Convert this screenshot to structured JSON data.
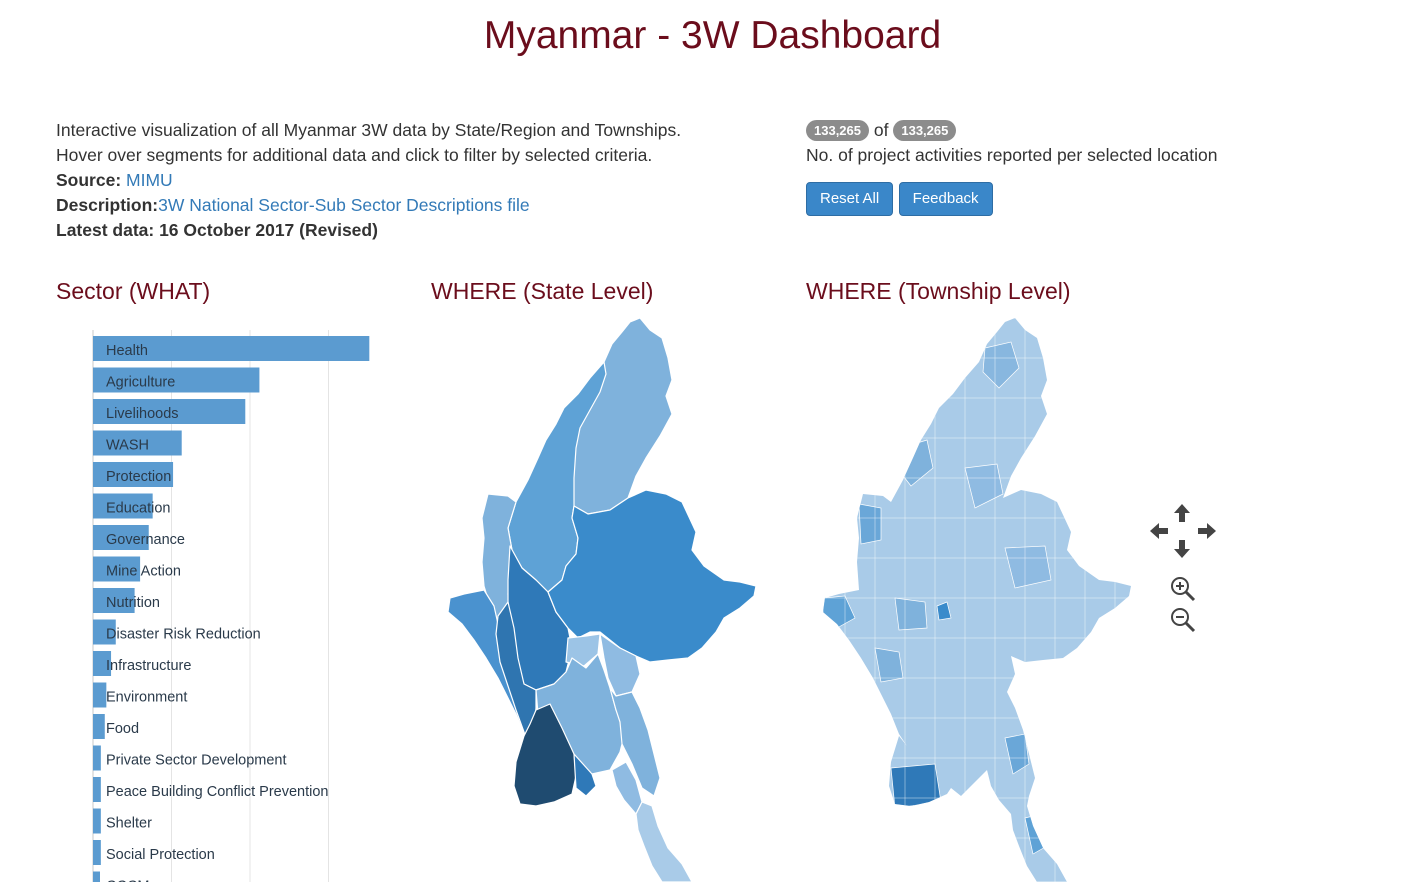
{
  "header": {
    "title": "Myanmar - 3W Dashboard"
  },
  "intro": {
    "line1": "Interactive visualization of all Myanmar 3W data by State/Region and Townships.",
    "line2": "Hover over segments for additional data and click to filter by selected criteria.",
    "source_label": "Source:",
    "source_link": "MIMU",
    "description_label": "Description:",
    "description_link": "3W National Sector-Sub Sector Descriptions file",
    "latest_label": "Latest data: 16 October 2017 (Revised)"
  },
  "counter": {
    "selected": "133,265",
    "of": "of",
    "total": "133,265",
    "caption": "No. of project activities reported per selected location"
  },
  "buttons": {
    "reset": "Reset All",
    "feedback": "Feedback"
  },
  "sections": {
    "sector": "Sector (WHAT)",
    "state": "WHERE (State Level)",
    "township": "WHERE (Township Level)"
  },
  "colors": {
    "title": "#6b0d1c",
    "link": "#337ab7",
    "bar": "#5b9bd0",
    "button": "#3a87c9",
    "badge": "#8c8c8c",
    "map_light": "#a9cbe8",
    "map_mid": "#5b9ed6",
    "map_dark": "#1f4b70"
  },
  "map_controls": {
    "pan_up": "arrow-up-icon",
    "pan_down": "arrow-down-icon",
    "pan_left": "arrow-left-icon",
    "pan_right": "arrow-right-icon",
    "zoom_in": "zoom-in-icon",
    "zoom_out": "zoom-out-icon"
  },
  "chart_data": {
    "type": "bar",
    "orientation": "horizontal",
    "categories": [
      "Health",
      "Agriculture",
      "Livelihoods",
      "WASH",
      "Protection",
      "Education",
      "Governance",
      "Mine Action",
      "Nutrition",
      "Disaster Risk Reduction",
      "Infrastructure",
      "Environment",
      "Food",
      "Private Sector Development",
      "Peace Building Conflict Prevention",
      "Shelter",
      "Social Protection",
      "CCCM"
    ],
    "values": [
      35200,
      21200,
      19400,
      11300,
      10200,
      7600,
      7100,
      6000,
      5300,
      2900,
      2300,
      1700,
      1500,
      1000,
      1000,
      1000,
      1000,
      500
    ],
    "xlim": [
      0,
      40000
    ],
    "grid": true
  }
}
